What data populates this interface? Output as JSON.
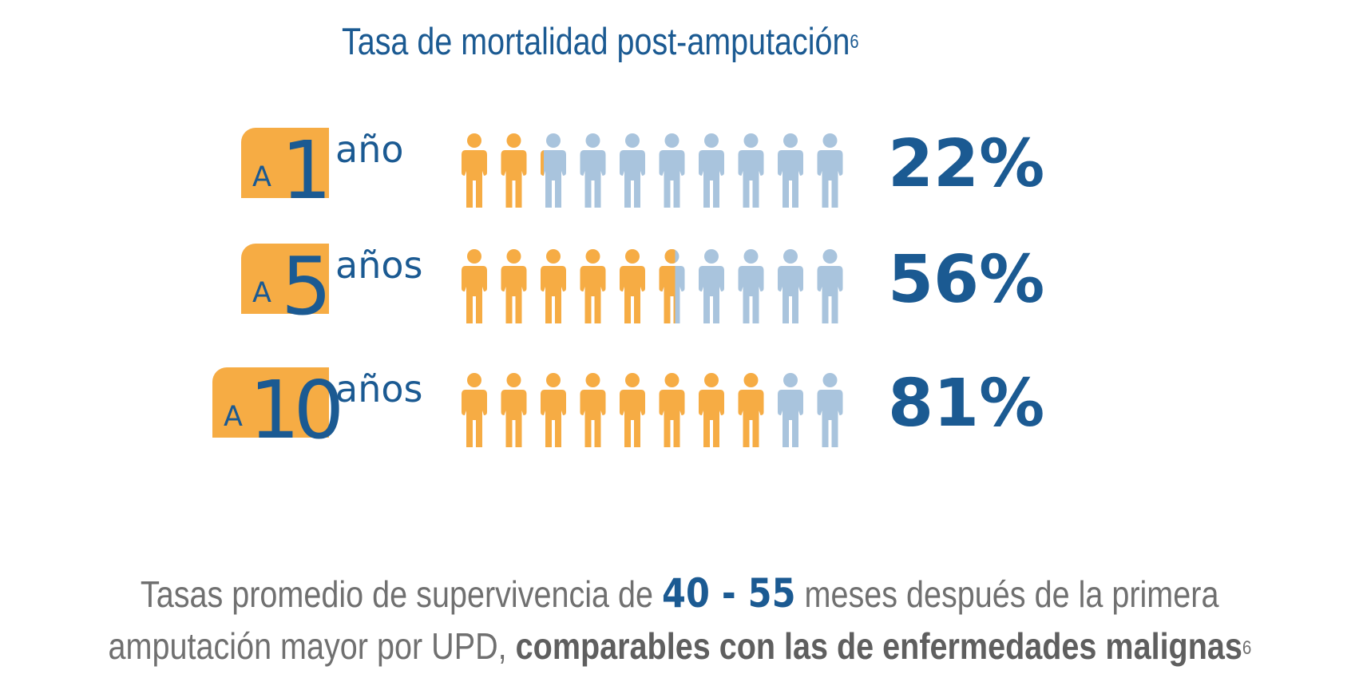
{
  "colors": {
    "accent": "#f6ac44",
    "primary": "#1b5a92",
    "muted": "#a9c4dd",
    "text": "#707070"
  },
  "chart_data": {
    "type": "pictogram",
    "title": "Tasa de mortalidad post-amputación",
    "title_ref": "6",
    "icon": "person-icon",
    "icons_per_row": 10,
    "rows": [
      {
        "prefix": "A",
        "number": "1",
        "unit": "año",
        "value": 22,
        "label": "22%"
      },
      {
        "prefix": "A",
        "number": "5",
        "unit": "años",
        "value": 56,
        "label": "56%"
      },
      {
        "prefix": "A",
        "number": "10",
        "unit": "años",
        "value": 81,
        "label": "81%"
      }
    ]
  },
  "footer": {
    "line1_pre": "Tasas promedio de supervivencia de ",
    "line1_highlight": "40 - 55",
    "line1_post": " meses después de la primera",
    "line2_pre": "amputación mayor por UPD, ",
    "line2_bold": "comparables con las de enfermedades malignas",
    "line2_ref": "6"
  }
}
